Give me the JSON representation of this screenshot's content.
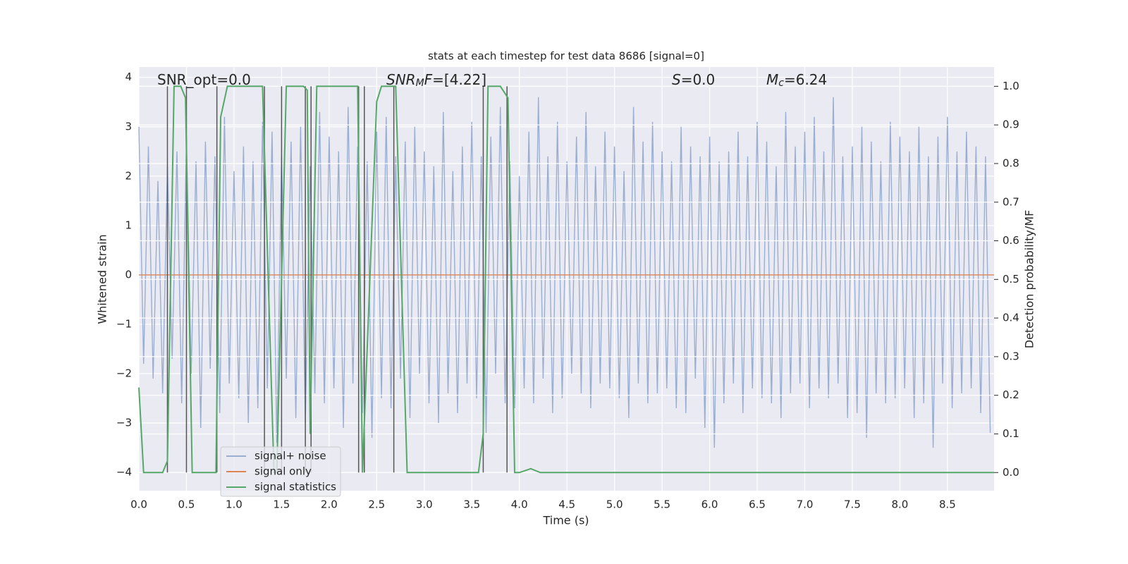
{
  "chart_data": {
    "type": "line",
    "title": "stats at each timestep for test data 8686 [signal=0]",
    "xlabel": "Time (s)",
    "ylabel": "Whitened strain",
    "y2label": "Detection probability/MF",
    "xlim": [
      0,
      8.99
    ],
    "ylim": [
      -4.37,
      4.21
    ],
    "y2lim": [
      -0.047,
      1.05
    ],
    "xticks": [
      {
        "value": 0,
        "label": "0.0"
      },
      0.5,
      {
        "value": 1,
        "label": "1.0"
      },
      1.5,
      {
        "value": 2,
        "label": "2.0"
      },
      2.5,
      {
        "value": 3,
        "label": "3.0"
      },
      3.5,
      {
        "value": 4,
        "label": "4.0"
      },
      4.5,
      {
        "value": 5,
        "label": "5.0"
      },
      5.5,
      {
        "value": 6,
        "label": "6.0"
      },
      6.5,
      {
        "value": 7,
        "label": "7.0"
      },
      7.5,
      {
        "value": 8,
        "label": "8.0"
      },
      8.5
    ],
    "yticks": [
      {
        "value": -4,
        "label": "−4"
      },
      {
        "value": -3,
        "label": "−3"
      },
      {
        "value": -2,
        "label": "−2"
      },
      {
        "value": -1,
        "label": "−1"
      },
      0,
      1,
      2,
      3,
      4
    ],
    "y2ticks": [
      {
        "value": 0,
        "label": "0.0"
      },
      0.1,
      0.2,
      0.3,
      0.4,
      0.5,
      0.6,
      0.7,
      0.8,
      0.9,
      {
        "value": 1,
        "label": "1.0"
      }
    ],
    "grid": true,
    "legend": "lower left",
    "annotations": [
      {
        "text": "SNR_opt=0.0"
      },
      {
        "main": "SNR",
        "sub": "M",
        "tail": "F",
        "text": "=[4.22]"
      },
      {
        "main": "S",
        "text": "=0.0"
      },
      {
        "main": "M",
        "sub": "c",
        "text": "=6.24"
      }
    ],
    "vlines": {
      "color": "#555555",
      "range": [
        0,
        1
      ],
      "x": [
        0.3,
        0.5,
        0.82,
        1.32,
        1.5,
        1.75,
        1.81,
        2.31,
        2.37,
        2.68,
        3.62,
        3.87
      ]
    },
    "series": [
      {
        "name": "signal+ noise",
        "color": "#9aaed2",
        "axis": "y",
        "x": [
          0,
          0.05,
          0.1,
          0.15,
          0.2,
          0.25,
          0.3,
          0.35,
          0.4,
          0.45,
          0.5,
          0.55,
          0.6,
          0.65,
          0.7,
          0.75,
          0.8,
          0.85,
          0.9,
          0.95,
          1,
          1.05,
          1.1,
          1.15,
          1.2,
          1.25,
          1.3,
          1.35,
          1.4,
          1.45,
          1.5,
          1.55,
          1.6,
          1.65,
          1.7,
          1.75,
          1.8,
          1.85,
          1.9,
          1.95,
          2,
          2.05,
          2.1,
          2.15,
          2.2,
          2.25,
          2.3,
          2.35,
          2.4,
          2.45,
          2.5,
          2.55,
          2.6,
          2.65,
          2.7,
          2.75,
          2.8,
          2.85,
          2.9,
          2.95,
          3,
          3.05,
          3.1,
          3.15,
          3.2,
          3.25,
          3.3,
          3.35,
          3.4,
          3.45,
          3.5,
          3.55,
          3.6,
          3.65,
          3.7,
          3.75,
          3.8,
          3.85,
          3.9,
          3.95,
          4,
          4.05,
          4.1,
          4.15,
          4.2,
          4.25,
          4.3,
          4.35,
          4.4,
          4.45,
          4.5,
          4.55,
          4.6,
          4.65,
          4.7,
          4.75,
          4.8,
          4.85,
          4.9,
          4.95,
          5,
          5.05,
          5.1,
          5.15,
          5.2,
          5.25,
          5.3,
          5.35,
          5.4,
          5.45,
          5.5,
          5.55,
          5.6,
          5.65,
          5.7,
          5.75,
          5.8,
          5.85,
          5.9,
          5.95,
          6,
          6.05,
          6.1,
          6.15,
          6.2,
          6.25,
          6.3,
          6.35,
          6.4,
          6.45,
          6.5,
          6.55,
          6.6,
          6.65,
          6.7,
          6.75,
          6.8,
          6.85,
          6.9,
          6.95,
          7,
          7.05,
          7.1,
          7.15,
          7.2,
          7.25,
          7.3,
          7.35,
          7.4,
          7.45,
          7.5,
          7.55,
          7.6,
          7.65,
          7.7,
          7.75,
          7.8,
          7.85,
          7.9,
          7.95,
          8,
          8.05,
          8.1,
          8.15,
          8.2,
          8.25,
          8.3,
          8.35,
          8.4,
          8.45,
          8.5,
          8.55,
          8.6,
          8.65,
          8.7,
          8.75,
          8.8,
          8.85,
          8.9,
          8.95
        ],
        "values": [
          3.0,
          -1.8,
          2.6,
          -2.1,
          1.9,
          -2.4,
          2.2,
          -1.7,
          2.5,
          -2.6,
          2.8,
          -2.0,
          2.3,
          -3.1,
          2.7,
          -1.9,
          2.4,
          -2.8,
          3.2,
          -2.2,
          2.1,
          -2.5,
          2.6,
          -3.0,
          2.3,
          -2.7,
          3.1,
          -2.3,
          2.9,
          -3.4,
          2.4,
          -2.1,
          2.7,
          -2.9,
          3.0,
          -3.0,
          2.2,
          -2.4,
          3.3,
          -2.6,
          2.8,
          -2.3,
          2.5,
          -3.1,
          3.4,
          -2.2,
          2.6,
          -2.8,
          2.3,
          -3.3,
          2.9,
          -2.5,
          3.2,
          -2.7,
          2.4,
          -2.1,
          2.7,
          -2.9,
          3.0,
          -2.0,
          2.5,
          -2.6,
          2.2,
          -3.0,
          3.3,
          -2.4,
          2.1,
          -2.8,
          2.6,
          -2.2,
          3.1,
          -2.5,
          2.4,
          -3.2,
          2.8,
          -2.0,
          3.4,
          -2.6,
          2.3,
          -2.7,
          2.0,
          -2.3,
          2.9,
          -2.6,
          3.6,
          -2.1,
          2.4,
          -2.8,
          3.1,
          -2.5,
          2.3,
          -2.0,
          2.8,
          -2.4,
          3.3,
          -2.7,
          2.2,
          -2.2,
          2.9,
          -2.3,
          2.6,
          -2.5,
          2.1,
          -2.9,
          3.4,
          -2.2,
          2.7,
          -2.6,
          3.1,
          -2.4,
          2.5,
          -2.3,
          2.3,
          -2.7,
          3.0,
          -2.8,
          2.6,
          -2.1,
          2.4,
          -3.1,
          2.8,
          -3.5,
          2.3,
          -2.6,
          2.5,
          -2.2,
          2.9,
          -2.8,
          2.4,
          -2.3,
          3.1,
          -2.5,
          2.7,
          -2.6,
          2.2,
          -2.9,
          3.3,
          -2.4,
          2.6,
          -2.2,
          2.9,
          -2.7,
          3.2,
          -2.3,
          2.5,
          -2.5,
          3.6,
          -2.2,
          2.4,
          -2.9,
          2.6,
          -2.8,
          3.0,
          -3.3,
          2.7,
          -2.4,
          2.3,
          -2.6,
          3.1,
          -2.5,
          2.8,
          -2.3,
          2.5,
          -2.9,
          3.0,
          -2.6,
          2.4,
          -3.5,
          2.8,
          -2.2,
          3.2,
          -2.7,
          2.5,
          -2.4,
          2.9,
          -2.3,
          2.6,
          -2.8,
          2.4,
          -3.2
        ]
      },
      {
        "name": "signal only",
        "color": "#dd8452",
        "axis": "y",
        "x": [
          0,
          8.99
        ],
        "values": [
          0,
          0
        ]
      },
      {
        "name": "signal statistics",
        "color": "#55a868",
        "axis": "y2",
        "x": [
          0,
          0.05,
          0.25,
          0.3,
          0.37,
          0.44,
          0.49,
          0.56,
          0.81,
          0.86,
          0.93,
          1.3,
          1.42,
          1.45,
          1.55,
          1.73,
          1.77,
          1.8,
          1.87,
          2.3,
          2.35,
          2.5,
          2.55,
          2.7,
          2.82,
          3.57,
          3.62,
          3.67,
          3.8,
          3.88,
          3.95,
          4.0,
          4.12,
          4.22,
          8.99
        ],
        "values": [
          0.22,
          0,
          0,
          0.03,
          1,
          1,
          0.97,
          0,
          0,
          0.92,
          1,
          1,
          0,
          0,
          1,
          1,
          0.99,
          0.1,
          1,
          1,
          0,
          0.96,
          1,
          1,
          0,
          0,
          0.1,
          1,
          1,
          0.97,
          0,
          0,
          0.01,
          0,
          0
        ]
      }
    ]
  }
}
